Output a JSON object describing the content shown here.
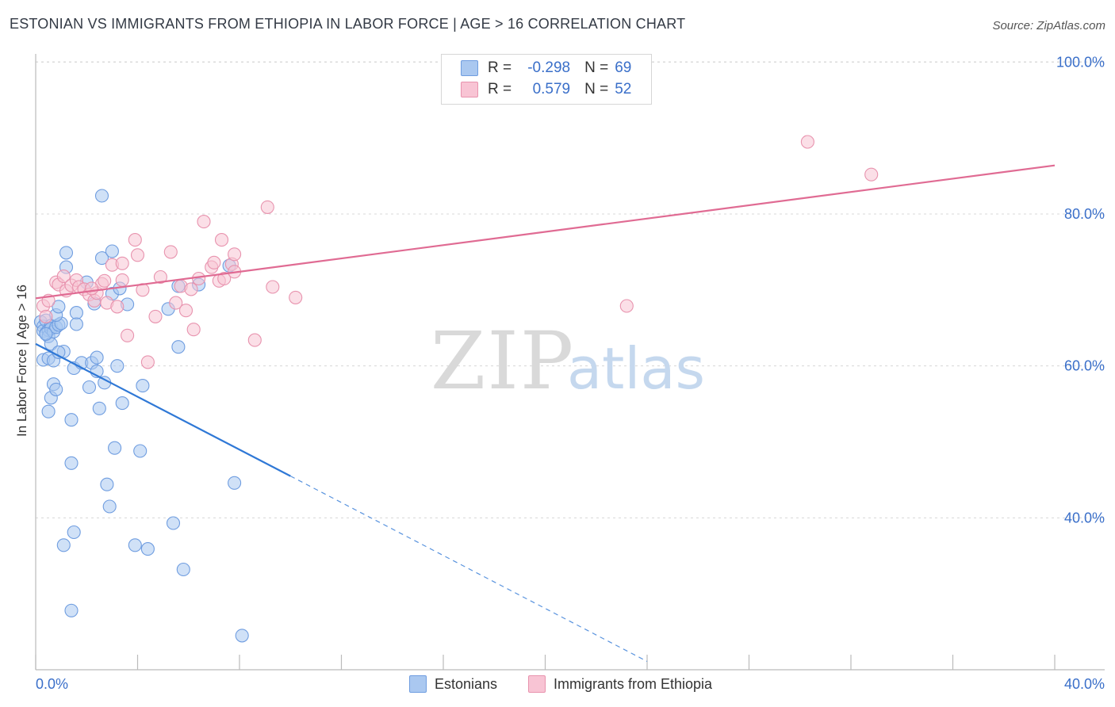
{
  "header": {
    "title": "ESTONIAN VS IMMIGRANTS FROM ETHIOPIA IN LABOR FORCE | AGE > 16 CORRELATION CHART",
    "source": "Source: ZipAtlas.com"
  },
  "watermark": {
    "zip": "ZIP",
    "atlas": "atlas"
  },
  "legend": {
    "rows": [
      {
        "r_label": "R =",
        "r_value": "-0.298",
        "n_label": "N =",
        "n_value": "69",
        "color": "#aac8f0",
        "border": "#6f9de0"
      },
      {
        "r_label": "R =",
        "r_value": "0.579",
        "n_label": "N =",
        "n_value": "52",
        "color": "#f8c4d4",
        "border": "#e893ae"
      }
    ]
  },
  "bottom_legend": {
    "items": [
      {
        "label": "Estonians",
        "color": "#aac8f0",
        "border": "#6f9de0"
      },
      {
        "label": "Immigrants from Ethiopia",
        "color": "#f8c4d4",
        "border": "#e893ae"
      }
    ]
  },
  "chart_data": {
    "type": "scatter",
    "title": "ESTONIAN VS IMMIGRANTS FROM ETHIOPIA IN LABOR FORCE | AGE > 16 CORRELATION CHART",
    "xlabel": "",
    "ylabel": "In Labor Force | Age > 16",
    "xlim": [
      0,
      40
    ],
    "ylim": [
      20,
      104
    ],
    "x_tick_labels": [
      "0.0%",
      "40.0%"
    ],
    "y_ticks": [
      40,
      60,
      80,
      100
    ],
    "y_tick_labels": [
      "40.0%",
      "60.0%",
      "80.0%",
      "100.0%"
    ],
    "grid": true,
    "series": [
      {
        "name": "Estonians",
        "color": "#6f9de0",
        "fill": "#aac8f0",
        "line_color": "#2f78d6",
        "trend": {
          "x0": 0.0,
          "y0": 62.9,
          "x1": 10.0,
          "y1": 45.5,
          "dash_to_x": 24.0,
          "dash_to_y": 21.1
        },
        "points": [
          [
            0.2,
            65.8
          ],
          [
            0.3,
            65.2
          ],
          [
            0.3,
            64.6
          ],
          [
            0.4,
            66.0
          ],
          [
            0.4,
            64.3
          ],
          [
            0.5,
            64.7
          ],
          [
            0.5,
            63.9
          ],
          [
            0.6,
            65.3
          ],
          [
            0.6,
            64.9
          ],
          [
            0.7,
            64.5
          ],
          [
            0.8,
            65.1
          ],
          [
            0.9,
            65.4
          ],
          [
            1.0,
            65.6
          ],
          [
            0.3,
            60.8
          ],
          [
            0.5,
            61.0
          ],
          [
            0.6,
            62.9
          ],
          [
            0.7,
            60.7
          ],
          [
            0.8,
            66.7
          ],
          [
            0.9,
            67.8
          ],
          [
            1.1,
            61.9
          ],
          [
            1.2,
            73.0
          ],
          [
            1.2,
            74.9
          ],
          [
            1.5,
            59.7
          ],
          [
            1.6,
            67.0
          ],
          [
            1.8,
            60.4
          ],
          [
            2.0,
            71.0
          ],
          [
            2.1,
            57.2
          ],
          [
            2.2,
            60.4
          ],
          [
            2.3,
            68.2
          ],
          [
            2.4,
            61.1
          ],
          [
            2.4,
            59.3
          ],
          [
            2.5,
            54.4
          ],
          [
            2.6,
            82.4
          ],
          [
            2.6,
            74.2
          ],
          [
            2.7,
            57.8
          ],
          [
            2.8,
            44.4
          ],
          [
            2.9,
            41.5
          ],
          [
            3.0,
            69.5
          ],
          [
            3.0,
            75.1
          ],
          [
            3.1,
            49.2
          ],
          [
            3.2,
            60.0
          ],
          [
            3.3,
            70.2
          ],
          [
            3.4,
            55.1
          ],
          [
            3.6,
            68.1
          ],
          [
            3.9,
            36.4
          ],
          [
            4.1,
            48.8
          ],
          [
            4.2,
            57.4
          ],
          [
            4.4,
            35.9
          ],
          [
            5.2,
            67.5
          ],
          [
            5.4,
            39.3
          ],
          [
            5.6,
            70.5
          ],
          [
            5.6,
            62.5
          ],
          [
            5.8,
            33.2
          ],
          [
            6.4,
            70.7
          ],
          [
            7.6,
            73.2
          ],
          [
            7.8,
            44.6
          ],
          [
            8.1,
            24.5
          ],
          [
            0.5,
            54.0
          ],
          [
            0.6,
            55.8
          ],
          [
            0.7,
            57.6
          ],
          [
            0.8,
            56.9
          ],
          [
            1.1,
            36.4
          ],
          [
            1.4,
            52.9
          ],
          [
            1.4,
            47.2
          ],
          [
            1.5,
            38.1
          ],
          [
            1.4,
            27.8
          ],
          [
            1.6,
            65.5
          ],
          [
            0.9,
            61.8
          ],
          [
            0.4,
            64.2
          ]
        ]
      },
      {
        "name": "Immigrants from Ethiopia",
        "color": "#e893ae",
        "fill": "#f8c4d4",
        "line_color": "#e06b93",
        "trend": {
          "x0": 0.0,
          "y0": 68.9,
          "x1": 40.0,
          "y1": 86.4
        },
        "points": [
          [
            0.3,
            67.9
          ],
          [
            0.4,
            66.5
          ],
          [
            0.5,
            68.6
          ],
          [
            0.8,
            71.0
          ],
          [
            0.9,
            70.7
          ],
          [
            1.1,
            71.8
          ],
          [
            1.2,
            69.9
          ],
          [
            1.4,
            70.6
          ],
          [
            1.6,
            71.3
          ],
          [
            1.7,
            70.4
          ],
          [
            1.9,
            70.1
          ],
          [
            2.1,
            69.4
          ],
          [
            2.3,
            68.6
          ],
          [
            2.4,
            69.6
          ],
          [
            2.6,
            70.8
          ],
          [
            2.7,
            71.2
          ],
          [
            2.8,
            68.3
          ],
          [
            3.0,
            73.3
          ],
          [
            3.2,
            67.8
          ],
          [
            3.4,
            73.5
          ],
          [
            3.4,
            71.3
          ],
          [
            3.6,
            64.0
          ],
          [
            3.9,
            76.6
          ],
          [
            4.0,
            74.6
          ],
          [
            4.2,
            70.0
          ],
          [
            4.4,
            60.5
          ],
          [
            4.7,
            66.5
          ],
          [
            4.9,
            71.7
          ],
          [
            5.3,
            75.0
          ],
          [
            5.5,
            68.3
          ],
          [
            5.7,
            70.5
          ],
          [
            5.9,
            67.3
          ],
          [
            6.1,
            70.1
          ],
          [
            6.2,
            64.8
          ],
          [
            6.4,
            71.5
          ],
          [
            6.6,
            79.0
          ],
          [
            6.9,
            73.0
          ],
          [
            7.0,
            73.6
          ],
          [
            7.2,
            71.2
          ],
          [
            7.3,
            76.6
          ],
          [
            7.4,
            71.5
          ],
          [
            7.7,
            73.4
          ],
          [
            7.8,
            72.4
          ],
          [
            7.8,
            74.7
          ],
          [
            8.6,
            63.4
          ],
          [
            9.1,
            80.9
          ],
          [
            9.3,
            70.4
          ],
          [
            10.2,
            69.0
          ],
          [
            23.2,
            67.9
          ],
          [
            30.3,
            89.5
          ],
          [
            32.8,
            85.2
          ],
          [
            2.2,
            70.2
          ]
        ]
      }
    ]
  }
}
